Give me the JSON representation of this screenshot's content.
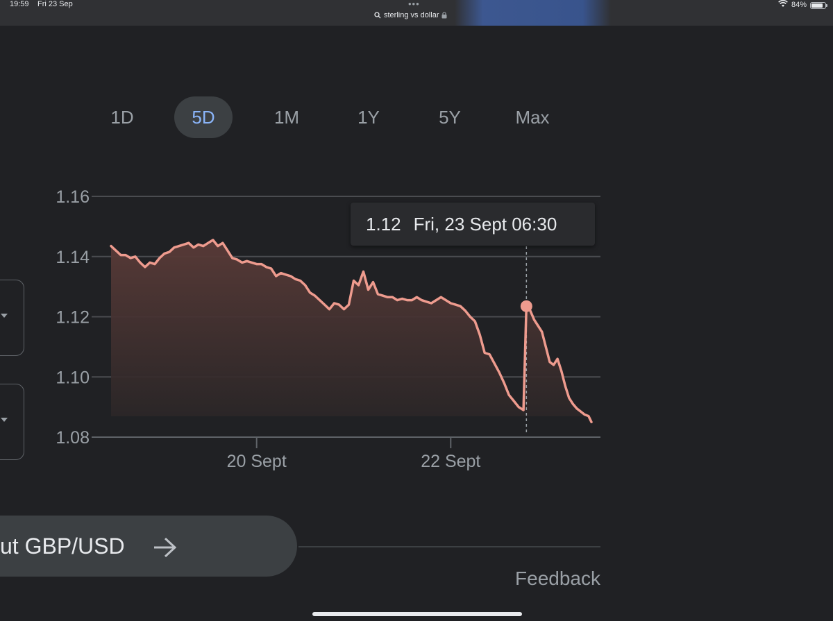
{
  "status_bar": {
    "time": "19:59",
    "date": "Fri 23 Sep",
    "url": "sterling vs dollar",
    "battery": "84%",
    "battery_level": 0.84,
    "more_dots": "•••"
  },
  "range_tabs": [
    {
      "label": "1D",
      "active": false
    },
    {
      "label": "5D",
      "active": true
    },
    {
      "label": "1M",
      "active": false
    },
    {
      "label": "1Y",
      "active": false
    },
    {
      "label": "5Y",
      "active": false
    },
    {
      "label": "Max",
      "active": false
    }
  ],
  "tooltip": {
    "value": "1.12",
    "timestamp": "Fri, 23 Sept 06:30"
  },
  "chart_data": {
    "type": "area",
    "y_ticks": [
      "1.16",
      "1.14",
      "1.12",
      "1.10",
      "1.08"
    ],
    "y_tick_values": [
      1.16,
      1.14,
      1.12,
      1.1,
      1.08
    ],
    "ylim": [
      1.08,
      1.16
    ],
    "x_ticks": [
      "20 Sept",
      "22 Sept"
    ],
    "x_tick_positions_day": [
      1.0,
      3.0
    ],
    "xlim_day": [
      -0.5,
      4.45
    ],
    "line_color": "#ee9b8e",
    "fill_color": "#5a3b38",
    "highlight": {
      "day": 3.78,
      "value": 1.1235
    },
    "series": [
      {
        "x_day": [
          -0.5,
          -0.45,
          -0.4,
          -0.35,
          -0.3,
          -0.25,
          -0.2,
          -0.15,
          -0.1,
          -0.05,
          0.0,
          0.05,
          0.1,
          0.15,
          0.2,
          0.25,
          0.3,
          0.35,
          0.4,
          0.45,
          0.5,
          0.55,
          0.6,
          0.65,
          0.7,
          0.75,
          0.8,
          0.85,
          0.9,
          0.95,
          1.0,
          1.05,
          1.1,
          1.15,
          1.2,
          1.25,
          1.3,
          1.35,
          1.4,
          1.45,
          1.5,
          1.55,
          1.6,
          1.65,
          1.7,
          1.75,
          1.8,
          1.85,
          1.9,
          1.95,
          2.0,
          2.05,
          2.1,
          2.15,
          2.2,
          2.25,
          2.3,
          2.35,
          2.4,
          2.45,
          2.5,
          2.55,
          2.6,
          2.65,
          2.7,
          2.75,
          2.8,
          2.85,
          2.9,
          2.95,
          3.0,
          3.05,
          3.1,
          3.15,
          3.2,
          3.25,
          3.3,
          3.35,
          3.4,
          3.45,
          3.5,
          3.55,
          3.6,
          3.65,
          3.7,
          3.75,
          3.78,
          3.82,
          3.86,
          3.9,
          3.94,
          3.98,
          4.02,
          4.06,
          4.1,
          4.14,
          4.18,
          4.22,
          4.26,
          4.3,
          4.34,
          4.38,
          4.42,
          4.45
        ],
        "values": [
          1.1435,
          1.142,
          1.1405,
          1.1405,
          1.1395,
          1.14,
          1.138,
          1.1365,
          1.138,
          1.1375,
          1.1395,
          1.141,
          1.1415,
          1.143,
          1.1435,
          1.144,
          1.1445,
          1.143,
          1.144,
          1.1435,
          1.1445,
          1.1455,
          1.1435,
          1.1445,
          1.142,
          1.1395,
          1.139,
          1.138,
          1.1385,
          1.138,
          1.1375,
          1.1375,
          1.1365,
          1.136,
          1.1335,
          1.1345,
          1.134,
          1.1335,
          1.1325,
          1.132,
          1.1305,
          1.128,
          1.127,
          1.1255,
          1.124,
          1.1225,
          1.1245,
          1.124,
          1.1225,
          1.124,
          1.132,
          1.1305,
          1.135,
          1.129,
          1.1315,
          1.1275,
          1.127,
          1.1265,
          1.1265,
          1.1255,
          1.126,
          1.1255,
          1.1255,
          1.1265,
          1.1255,
          1.125,
          1.1245,
          1.1255,
          1.1265,
          1.1255,
          1.1245,
          1.124,
          1.1235,
          1.122,
          1.12,
          1.1185,
          1.114,
          1.108,
          1.1075,
          1.1045,
          1.1015,
          1.098,
          1.094,
          1.092,
          1.09,
          1.089,
          1.1235,
          1.122,
          1.119,
          1.117,
          1.115,
          1.11,
          1.105,
          1.104,
          1.106,
          1.102,
          1.097,
          1.093,
          1.091,
          1.0895,
          1.0885,
          1.0875,
          1.087,
          1.085
        ]
      }
    ]
  },
  "about": {
    "label": "ut GBP/USD",
    "arrow_icon": "arrow-right-icon"
  },
  "feedback_label": "Feedback"
}
